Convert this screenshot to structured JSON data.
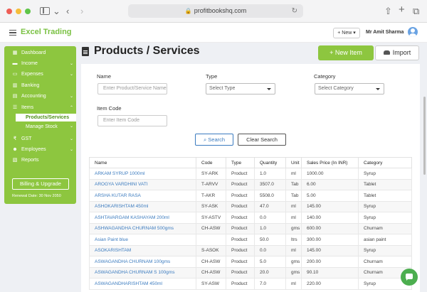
{
  "browser": {
    "url": "profitbookshq.com"
  },
  "header": {
    "brand": "Excel Trading",
    "new_button": "+ New ▾",
    "user_name": "Mr Amit Sharma"
  },
  "sidebar": {
    "items": [
      {
        "label": "Dashboard",
        "icon": "dashboard-icon",
        "chevron": ""
      },
      {
        "label": "Income",
        "icon": "income-icon",
        "chevron": "⌄"
      },
      {
        "label": "Expenses",
        "icon": "expenses-icon",
        "chevron": "⌄"
      },
      {
        "label": "Banking",
        "icon": "bank-icon",
        "chevron": ""
      },
      {
        "label": "Accounting",
        "icon": "accounting-icon",
        "chevron": "⌄"
      },
      {
        "label": "Items",
        "icon": "items-icon",
        "chevron": "⌃"
      },
      {
        "label": "GST",
        "icon": "rupee-icon",
        "chevron": "⌄"
      },
      {
        "label": "Employees",
        "icon": "employees-icon",
        "chevron": "⌄"
      },
      {
        "label": "Reports",
        "icon": "reports-icon",
        "chevron": ""
      }
    ],
    "subitems": [
      {
        "label": "Products/Services",
        "active": true
      },
      {
        "label": "Manage Stock",
        "active": false
      }
    ],
    "manage_stock_chevron": "⌄",
    "billing_button": "Billing & Upgrade",
    "renewal": "Renewal Date: 30 Nov 2050"
  },
  "page": {
    "title": "Products / Services",
    "new_item_button": "+ New Item",
    "import_button": "Import"
  },
  "filters": {
    "name_label": "Name",
    "name_placeholder": "Enter Product/Service Name",
    "type_label": "Type",
    "type_value": "Select Type",
    "category_label": "Category",
    "category_value": "Select Category",
    "code_label": "Item Code",
    "code_placeholder": "Enter Item Code",
    "search_button": "Search",
    "clear_button": "Clear Search"
  },
  "table": {
    "columns": [
      "Name",
      "Code",
      "Type",
      "Quantity",
      "Unit",
      "Sales Price (In INR)",
      "Category"
    ],
    "rows": [
      [
        "ARKAM SYRUP 1000ml",
        "SY-ARK",
        "Product",
        "1.0",
        "ml",
        "1000.00",
        "Syrup"
      ],
      [
        "AROGYA VARDHINI VATI",
        "T-ARVV",
        "Product",
        "3507.0",
        "Tab",
        "6.00",
        "Tablet"
      ],
      [
        "ARSHA KUTAR RASA",
        "T-AKR",
        "Product",
        "5508.0",
        "Tab",
        "5.00",
        "Tablet"
      ],
      [
        "ASHOKARISHTAM 450ml",
        "SY-ASK",
        "Product",
        "47.0",
        "ml",
        "145.00",
        "Syrup"
      ],
      [
        "ASHTAVARGAM KASHAYAM 200ml",
        "SY-ASTV",
        "Product",
        "0.0",
        "ml",
        "140.00",
        "Syrup"
      ],
      [
        "ASHWAGANDHA CHURNAM 500gms",
        "CH-ASW",
        "Product",
        "1.0",
        "gms",
        "600.00",
        "Churnam"
      ],
      [
        "Asian Paint blue",
        "",
        "Product",
        "50.0",
        "ltrs",
        "300.00",
        "asian paint"
      ],
      [
        "ASOKARISHTAM",
        "S-ASOK",
        "Product",
        "0.0",
        "ml",
        "145.00",
        "Syrup"
      ],
      [
        "ASWAGANDHA CHURNAM 100gms",
        "CH-ASW",
        "Product",
        "5.0",
        "gms",
        "200.00",
        "Churnam"
      ],
      [
        "ASWAGANDHA CHURNAM S 100gms",
        "CH-ASW",
        "Product",
        "20.0",
        "gms",
        "90.10",
        "Churnam"
      ],
      [
        "ASWAGANDHARISHTAM 450ml",
        "SY-ASW",
        "Product",
        "7.0",
        "ml",
        "220.00",
        "Syrup"
      ]
    ]
  }
}
